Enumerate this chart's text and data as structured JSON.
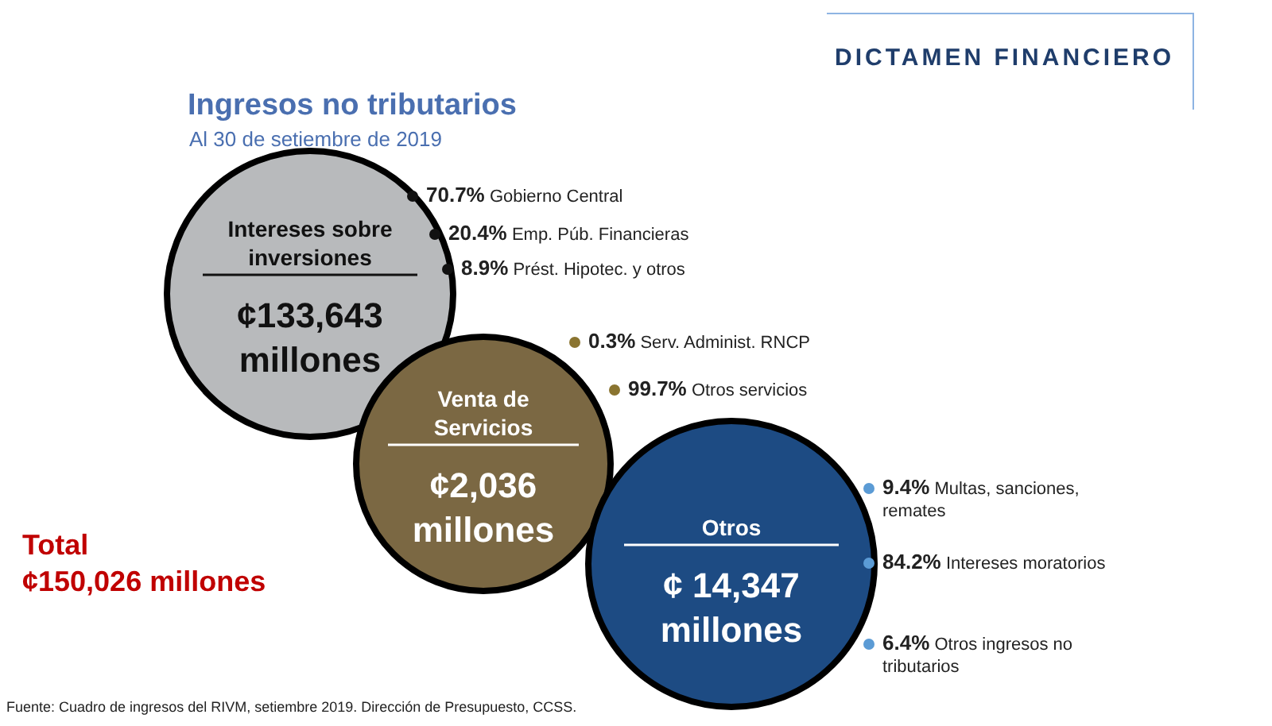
{
  "chart_data": {
    "type": "other",
    "title": "Ingresos no tributarios",
    "subtitle": "Al 30 de setiembre de 2019",
    "categories": [
      "Intereses sobre inversiones",
      "Venta de Servicios",
      "Otros"
    ],
    "values": [
      133643,
      2036,
      14347
    ],
    "colors": [
      "#b8babc",
      "#7b6843",
      "#1d4b83"
    ],
    "value_labels": [
      "¢133,643 millones",
      "¢2,036 millones",
      "¢ 14,347 millones"
    ],
    "annotations": [
      "DICTAMEN FINANCIERO",
      "Total ¢150,026 millones",
      "70.7% Gobierno Central",
      "20.4% Emp. Púb. Financieras",
      "8.9% Prést. Hipotec. y otros",
      "0.3% Serv. Administ. RNCP",
      "99.7% Otros servicios",
      "9.4% Multas, sanciones, remates",
      "84.2% Intereses moratorios",
      "6.4% Otros ingresos no tributarios",
      "Fuente: Cuadro de ingresos del RIVM, setiembre 2019. Dirección de Presupuesto, CCSS."
    ]
  }
}
